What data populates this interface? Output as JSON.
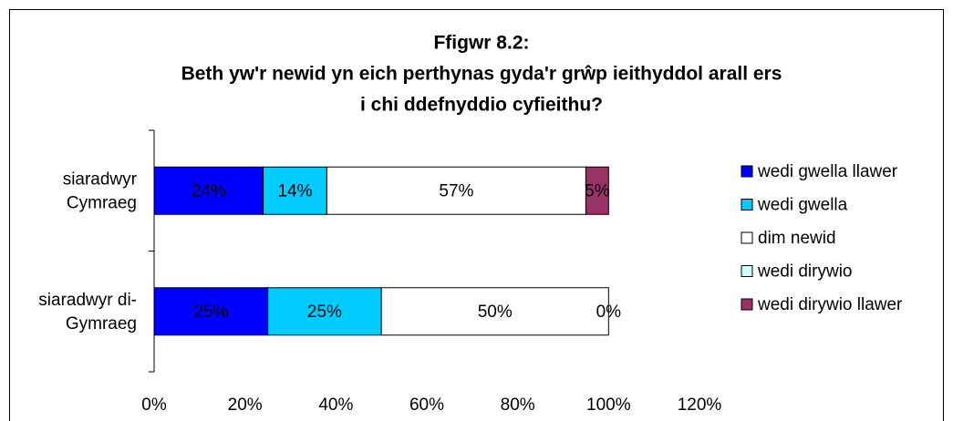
{
  "chart_data": {
    "type": "bar",
    "orientation": "horizontal",
    "stacked": true,
    "title": [
      "Ffigwr 8.2:",
      "Beth yw'r newid yn eich perthynas gyda'r grŵp ieithyddol arall ers",
      "i chi ddefnyddio cyfieithu?"
    ],
    "categories": [
      [
        "siaradwyr",
        "Cymraeg"
      ],
      [
        "siaradwyr di-",
        "Gymraeg"
      ]
    ],
    "series": [
      {
        "name": "wedi gwella llawer",
        "color": "#0000ff",
        "values": [
          24,
          25
        ],
        "value_labels": [
          "24%",
          "25%"
        ]
      },
      {
        "name": "wedi gwella",
        "color": "#00ccff",
        "values": [
          14,
          25
        ],
        "value_labels": [
          "14%",
          "25%"
        ]
      },
      {
        "name": "dim newid",
        "color": "#ffffff",
        "values": [
          57,
          50
        ],
        "value_labels": [
          "57%",
          "50%"
        ]
      },
      {
        "name": "wedi dirywio",
        "color": "#ccffff",
        "values": [
          0,
          0
        ],
        "value_labels": [
          null,
          null
        ]
      },
      {
        "name": "wedi dirywio llawer",
        "color": "#993366",
        "values": [
          5,
          0
        ],
        "value_labels": [
          "5%",
          "0%"
        ]
      }
    ],
    "xlim": [
      0,
      120
    ],
    "xticks": [
      {
        "value": 0,
        "label": "0%"
      },
      {
        "value": 20,
        "label": "20%"
      },
      {
        "value": 40,
        "label": "40%"
      },
      {
        "value": 60,
        "label": "60%"
      },
      {
        "value": 80,
        "label": "80%"
      },
      {
        "value": 100,
        "label": "100%"
      },
      {
        "value": 120,
        "label": "120%"
      }
    ],
    "legend": "right"
  }
}
